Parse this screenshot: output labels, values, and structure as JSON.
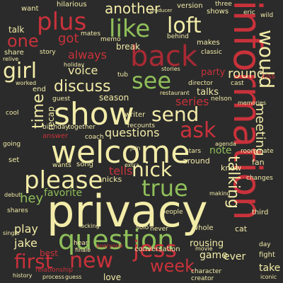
{
  "palette": {
    "background": "#2b2b2b",
    "cream": "#f3eca8",
    "green": "#8fbf5a",
    "red": "#c9323b",
    "dark_red": "#a92a34",
    "olive": "#6e9b49",
    "sand": "#e8d895"
  },
  "words": [
    {
      "text": "privacy",
      "color": "cream"
    },
    {
      "text": "information",
      "color": "red"
    },
    {
      "text": "welcome",
      "color": "cream"
    },
    {
      "text": "show",
      "color": "cream"
    },
    {
      "text": "back",
      "color": "dark_red"
    },
    {
      "text": "question",
      "color": "green"
    },
    {
      "text": "please",
      "color": "cream"
    },
    {
      "text": "plus",
      "color": "red"
    },
    {
      "text": "like",
      "color": "green"
    },
    {
      "text": "see",
      "color": "green"
    },
    {
      "text": "new",
      "color": "red"
    },
    {
      "text": "jess",
      "color": "red"
    },
    {
      "text": "true",
      "color": "green"
    },
    {
      "text": "first",
      "color": "red"
    },
    {
      "text": "girl",
      "color": "cream"
    },
    {
      "text": "ask",
      "color": "red"
    },
    {
      "text": "loft",
      "color": "cream"
    },
    {
      "text": "would",
      "color": "cream"
    },
    {
      "text": "send",
      "color": "cream"
    },
    {
      "text": "nick",
      "color": "cream"
    },
    {
      "text": "talking",
      "color": "cream"
    },
    {
      "text": "another",
      "color": "cream"
    },
    {
      "text": "one",
      "color": "red"
    },
    {
      "text": "week",
      "color": "red"
    },
    {
      "text": "discuss",
      "color": "cream"
    },
    {
      "text": "time",
      "color": "cream"
    },
    {
      "text": "questions",
      "color": "cream"
    },
    {
      "text": "meeting",
      "color": "cream"
    },
    {
      "text": "series",
      "color": "red"
    },
    {
      "text": "voice",
      "color": "cream"
    },
    {
      "text": "round",
      "color": "cream"
    },
    {
      "text": "got",
      "color": "red"
    },
    {
      "text": "always",
      "color": "red"
    },
    {
      "text": "favorite",
      "color": "green"
    },
    {
      "text": "hey",
      "color": "green"
    },
    {
      "text": "play",
      "color": "cream"
    },
    {
      "text": "jake",
      "color": "cream"
    },
    {
      "text": "tells",
      "color": "red"
    },
    {
      "text": "love",
      "color": "cream"
    },
    {
      "text": "game",
      "color": "cream"
    },
    {
      "text": "take",
      "color": "cream"
    },
    {
      "text": "note",
      "color": "green"
    },
    {
      "text": "party",
      "color": "red"
    },
    {
      "text": "talks",
      "color": "cream"
    },
    {
      "text": "recap",
      "color": "cream"
    },
    {
      "text": "talk",
      "color": "cream"
    },
    {
      "text": "break",
      "color": "cream"
    },
    {
      "text": "best",
      "color": "red"
    },
    {
      "text": "rousing",
      "color": "cream"
    },
    {
      "text": "ever",
      "color": "cream"
    },
    {
      "text": "season",
      "color": "cream"
    },
    {
      "text": "fan",
      "color": "cream"
    },
    {
      "text": "know",
      "color": "cream"
    },
    {
      "text": "end",
      "color": "cream"
    },
    {
      "text": "makes",
      "color": "cream"
    },
    {
      "text": "share",
      "color": "cream"
    },
    {
      "text": "hilarious",
      "color": "cream"
    },
    {
      "text": "version",
      "color": "cream"
    },
    {
      "text": "three",
      "color": "cream"
    },
    {
      "text": "song",
      "color": "cream"
    },
    {
      "text": "nicks",
      "color": "cream"
    },
    {
      "text": "wants",
      "color": "cream"
    },
    {
      "text": "set",
      "color": "cream"
    },
    {
      "text": "around",
      "color": "cream"
    },
    {
      "text": "answer",
      "color": "red"
    },
    {
      "text": "writer",
      "color": "cream"
    },
    {
      "text": "guest",
      "color": "cream"
    },
    {
      "text": "people",
      "color": "cream"
    },
    {
      "text": "conversation",
      "color": "cream"
    },
    {
      "text": "whole",
      "color": "cream"
    },
    {
      "text": "never",
      "color": "cream"
    },
    {
      "text": "hear",
      "color": "cream"
    },
    {
      "text": "solo",
      "color": "cream"
    },
    {
      "text": "director",
      "color": "cream"
    },
    {
      "text": "restaurant",
      "color": "cream"
    },
    {
      "text": "cast",
      "color": "cream"
    },
    {
      "text": "kiss",
      "color": "red"
    },
    {
      "text": "mates",
      "color": "cream"
    },
    {
      "text": "memo",
      "color": "cream"
    },
    {
      "text": "behind",
      "color": "cream"
    },
    {
      "text": "classic",
      "color": "cream"
    },
    {
      "text": "want",
      "color": "cream"
    },
    {
      "text": "shows",
      "color": "cream"
    },
    {
      "text": "story",
      "color": "cream"
    },
    {
      "text": "holiday",
      "color": "cream"
    },
    {
      "text": "tub",
      "color": "cream"
    },
    {
      "text": "stories",
      "color": "cream"
    },
    {
      "text": "worked",
      "color": "cream"
    },
    {
      "text": "birthday",
      "color": "cream"
    },
    {
      "text": "together",
      "color": "cream"
    },
    {
      "text": "recounts",
      "color": "cream"
    },
    {
      "text": "coach",
      "color": "cream"
    },
    {
      "text": "stars",
      "color": "cream"
    },
    {
      "text": "roommate",
      "color": "cream"
    },
    {
      "text": "extra",
      "color": "cream"
    },
    {
      "text": "join",
      "color": "cream"
    },
    {
      "text": "agenda",
      "color": "cream"
    },
    {
      "text": "nelson",
      "color": "cream"
    },
    {
      "text": "memories",
      "color": "cream"
    },
    {
      "text": "changes",
      "color": "cream"
    },
    {
      "text": "debut",
      "color": "cream"
    },
    {
      "text": "shares",
      "color": "cream"
    },
    {
      "text": "third",
      "color": "cream"
    },
    {
      "text": "finale",
      "color": "cream"
    },
    {
      "text": "locking",
      "color": "cream"
    },
    {
      "text": "movie",
      "color": "cream"
    },
    {
      "text": "character",
      "color": "cream"
    },
    {
      "text": "creator",
      "color": "cream"
    },
    {
      "text": "process",
      "color": "cream"
    },
    {
      "text": "history",
      "color": "cream"
    },
    {
      "text": "guess",
      "color": "cream"
    },
    {
      "text": "relationship",
      "color": "red"
    },
    {
      "text": "iconic",
      "color": "cream"
    },
    {
      "text": "fight",
      "color": "cream"
    },
    {
      "text": "day",
      "color": "cream"
    },
    {
      "text": "cat",
      "color": "cream"
    },
    {
      "text": "producer",
      "color": "cream"
    },
    {
      "text": "relive",
      "color": "cream"
    },
    {
      "text": "everyone",
      "color": "red"
    },
    {
      "text": "making",
      "color": "cream"
    },
    {
      "text": "wild",
      "color": "cream"
    },
    {
      "text": "eric",
      "color": "cream"
    },
    {
      "text": "cool",
      "color": "cream"
    },
    {
      "text": "going",
      "color": "cream"
    },
    {
      "text": "single",
      "color": "cream"
    }
  ]
}
